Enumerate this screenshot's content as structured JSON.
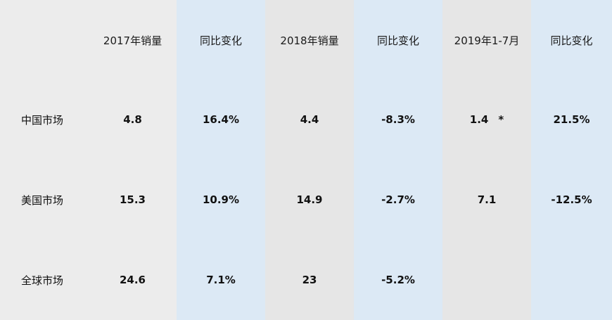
{
  "table": {
    "headers": [
      "",
      "2017年销量",
      "同比变化",
      "2018年销量",
      "同比变化",
      "2019年1-7月",
      "同比变化"
    ],
    "rows": [
      {
        "label": "中国市场",
        "cells": [
          "4.8",
          "16.4%",
          "4.4",
          "-8.3%",
          "1.4",
          "21.5%"
        ],
        "note_2019": "*"
      },
      {
        "label": "美国市场",
        "cells": [
          "15.3",
          "10.9%",
          "14.9",
          "-2.7%",
          "7.1",
          "-12.5%"
        ]
      },
      {
        "label": "全球市场",
        "cells": [
          "24.6",
          "7.1%",
          "23",
          "-5.2%",
          "",
          ""
        ]
      }
    ]
  },
  "colors": {
    "gray_column": "#ececec",
    "gray_column_alt": "#e6e6e6",
    "blue_column": "#dce9f5"
  }
}
